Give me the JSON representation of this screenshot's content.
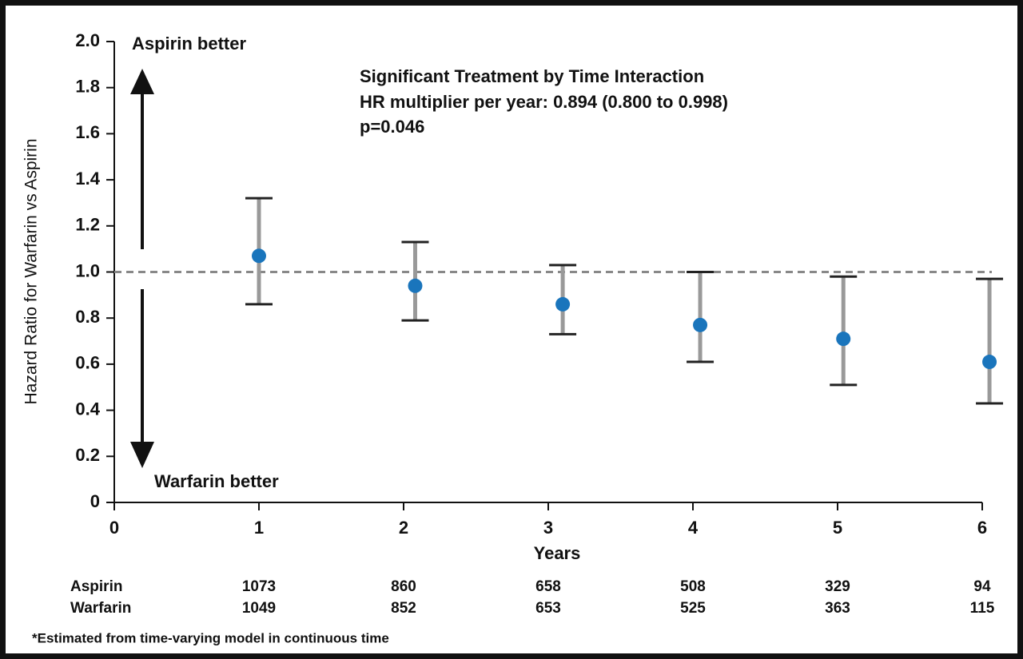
{
  "chart_data": {
    "type": "scatter",
    "y_label": "Hazard Ratio for Warfarin vs Aspirin",
    "x_label": "Years",
    "annotations": [
      "Aspirin better",
      "Warfarin better",
      "Significant Treatment by Time Interaction",
      "HR multiplier per year: 0.894 (0.800 to 0.998)",
      "p=0.046"
    ],
    "x": [
      1,
      2.08,
      3.1,
      4.05,
      5.04,
      6.05
    ],
    "values": [
      1.07,
      0.94,
      0.86,
      0.77,
      0.71,
      0.61
    ],
    "lower": [
      0.86,
      0.79,
      0.73,
      0.61,
      0.51,
      0.43
    ],
    "upper": [
      1.32,
      1.13,
      1.03,
      1.0,
      0.98,
      0.97
    ],
    "color": "#1a75bc",
    "xlim": [
      0,
      6
    ],
    "ylim": [
      0,
      2
    ],
    "xticks": [
      0,
      1,
      2,
      3,
      4,
      5,
      6
    ],
    "yticks": [
      0,
      0.2,
      0.4,
      0.6,
      0.8,
      {
        "value": 1,
        "label": "1.0"
      },
      1.2,
      1.4,
      1.6,
      1.8,
      {
        "value": 2,
        "label": "2.0"
      }
    ],
    "hline": 1,
    "table": {
      "rows": [
        {
          "label": "Aspirin",
          "values": [
            "1073",
            "860",
            "658",
            "508",
            "329",
            "94"
          ]
        },
        {
          "label": "Warfarin",
          "values": [
            "1049",
            "852",
            "653",
            "525",
            "363",
            "115"
          ]
        }
      ]
    },
    "footnote": "*Estimated from time-varying model in continuous time"
  }
}
